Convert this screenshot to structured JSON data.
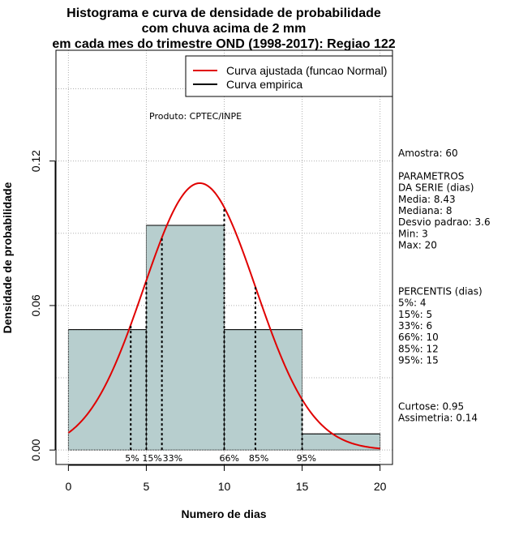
{
  "chart_data": {
    "type": "histogram",
    "title": [
      "Histograma e curva de densidade de probabilidade",
      "com chuva acima de 2 mm",
      "em cada mes do trimestre OND (1998-2017): Regiao 122"
    ],
    "xlabel": "Numero de dias",
    "ylabel": "Densidade de probabilidade",
    "xlim": [
      -0.8,
      20.8
    ],
    "ylim": [
      -0.006,
      0.166
    ],
    "x_ticks": [
      0,
      5,
      10,
      15,
      20
    ],
    "y_ticks": [
      0.0,
      0.06,
      0.12
    ],
    "y_tick_labels": [
      "0.00",
      "0.06",
      "0.12"
    ],
    "grid": true,
    "bins": [
      {
        "x0": 0,
        "x1": 5,
        "density": 0.05
      },
      {
        "x0": 5,
        "x1": 10,
        "density": 0.0933
      },
      {
        "x0": 10,
        "x1": 15,
        "density": 0.05
      },
      {
        "x0": 15,
        "x1": 20,
        "density": 0.0067
      }
    ],
    "bar_color": "#b7cece",
    "curve": {
      "name": "Curva ajustada (funcao Normal)",
      "distribution": "normal",
      "mean": 8.43,
      "sd": 3.6,
      "color": "#e00000"
    },
    "empirical": {
      "name": "Curva empirica",
      "color": "#000000"
    },
    "legend_position": "top-right",
    "percentiles": [
      {
        "label": "5%",
        "x": 4
      },
      {
        "label": "15%",
        "x": 5
      },
      {
        "label": "33%",
        "x": 6
      },
      {
        "label": "66%",
        "x": 10
      },
      {
        "label": "85%",
        "x": 12
      },
      {
        "label": "95%",
        "x": 15
      }
    ],
    "annotation": "Produto: CPTEC/INPE",
    "stats_lines": [
      "Amostra: 60",
      "",
      " PARAMETROS",
      "DA SERIE (dias)",
      "  Media: 8.43",
      "  Mediana: 8",
      "  Desvio padrao: 3.6",
      "  Min: 3",
      "  Max: 20",
      "",
      "",
      "",
      "PERCENTIS (dias)",
      "  5%: 4",
      "  15%: 5",
      "  33%: 6",
      "  66%: 10",
      "  85%: 12",
      "  95%: 15",
      "",
      "",
      "",
      "   Curtose: 0.95",
      "Assimetria: 0.14"
    ]
  }
}
